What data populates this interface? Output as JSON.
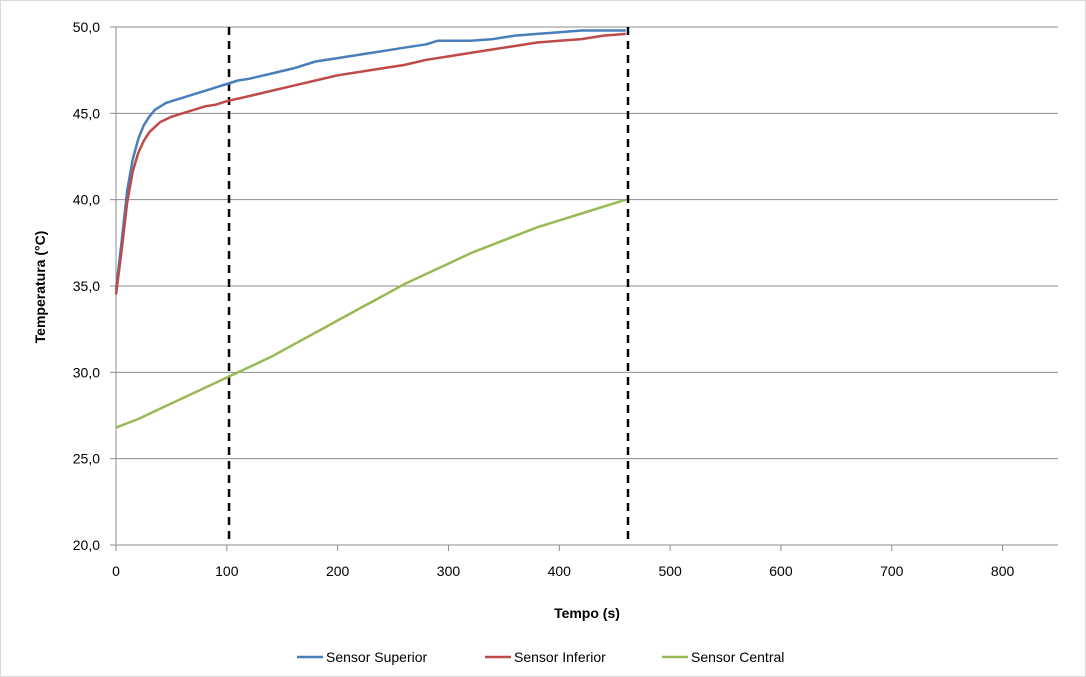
{
  "chart_data": {
    "type": "line",
    "xlabel": "Tempo (s)",
    "ylabel": "Temperatura (°C)",
    "xlim": [
      0,
      850
    ],
    "ylim": [
      20,
      50
    ],
    "x_ticks": [
      "0",
      "100",
      "200",
      "300",
      "400",
      "500",
      "600",
      "700",
      "800"
    ],
    "y_ticks": [
      "20,0",
      "25,0",
      "30,0",
      "35,0",
      "40,0",
      "45,0",
      "50,0"
    ],
    "grid": "horizontal",
    "legend_position": "bottom",
    "vertical_reference_lines": [
      102,
      462
    ],
    "series": [
      {
        "name": "Sensor Superior",
        "color": "#4a7ebb",
        "x": [
          0,
          5,
          10,
          15,
          20,
          25,
          30,
          35,
          40,
          45,
          50,
          60,
          70,
          80,
          90,
          100,
          110,
          120,
          140,
          160,
          180,
          200,
          220,
          240,
          260,
          280,
          290,
          300,
          320,
          340,
          360,
          380,
          400,
          420,
          440,
          460
        ],
        "y": [
          34.8,
          37.5,
          40.5,
          42.3,
          43.5,
          44.3,
          44.8,
          45.2,
          45.4,
          45.6,
          45.7,
          45.9,
          46.1,
          46.3,
          46.5,
          46.7,
          46.9,
          47.0,
          47.3,
          47.6,
          48.0,
          48.2,
          48.4,
          48.6,
          48.8,
          49.0,
          49.2,
          49.2,
          49.2,
          49.3,
          49.5,
          49.6,
          49.7,
          49.8,
          49.8,
          49.8
        ]
      },
      {
        "name": "Sensor Inferior",
        "color": "#be4b48",
        "x": [
          0,
          5,
          10,
          15,
          20,
          25,
          30,
          35,
          40,
          50,
          60,
          70,
          80,
          90,
          100,
          120,
          140,
          160,
          180,
          200,
          220,
          240,
          260,
          280,
          300,
          320,
          340,
          360,
          380,
          400,
          420,
          440,
          460
        ],
        "y": [
          34.5,
          37.0,
          39.8,
          41.6,
          42.7,
          43.4,
          43.9,
          44.2,
          44.5,
          44.8,
          45.0,
          45.2,
          45.4,
          45.5,
          45.7,
          46.0,
          46.3,
          46.6,
          46.9,
          47.2,
          47.4,
          47.6,
          47.8,
          48.1,
          48.3,
          48.5,
          48.7,
          48.9,
          49.1,
          49.2,
          49.3,
          49.5,
          49.6
        ]
      },
      {
        "name": "Sensor Central",
        "color": "#98b954",
        "x": [
          0,
          20,
          40,
          60,
          80,
          100,
          120,
          140,
          160,
          180,
          200,
          220,
          240,
          260,
          280,
          300,
          320,
          340,
          360,
          380,
          400,
          420,
          440,
          460
        ],
        "y": [
          26.8,
          27.3,
          27.9,
          28.5,
          29.1,
          29.7,
          30.3,
          30.9,
          31.6,
          32.3,
          33.0,
          33.7,
          34.4,
          35.1,
          35.7,
          36.3,
          36.9,
          37.4,
          37.9,
          38.4,
          38.8,
          39.2,
          39.6,
          40.0
        ]
      }
    ]
  }
}
